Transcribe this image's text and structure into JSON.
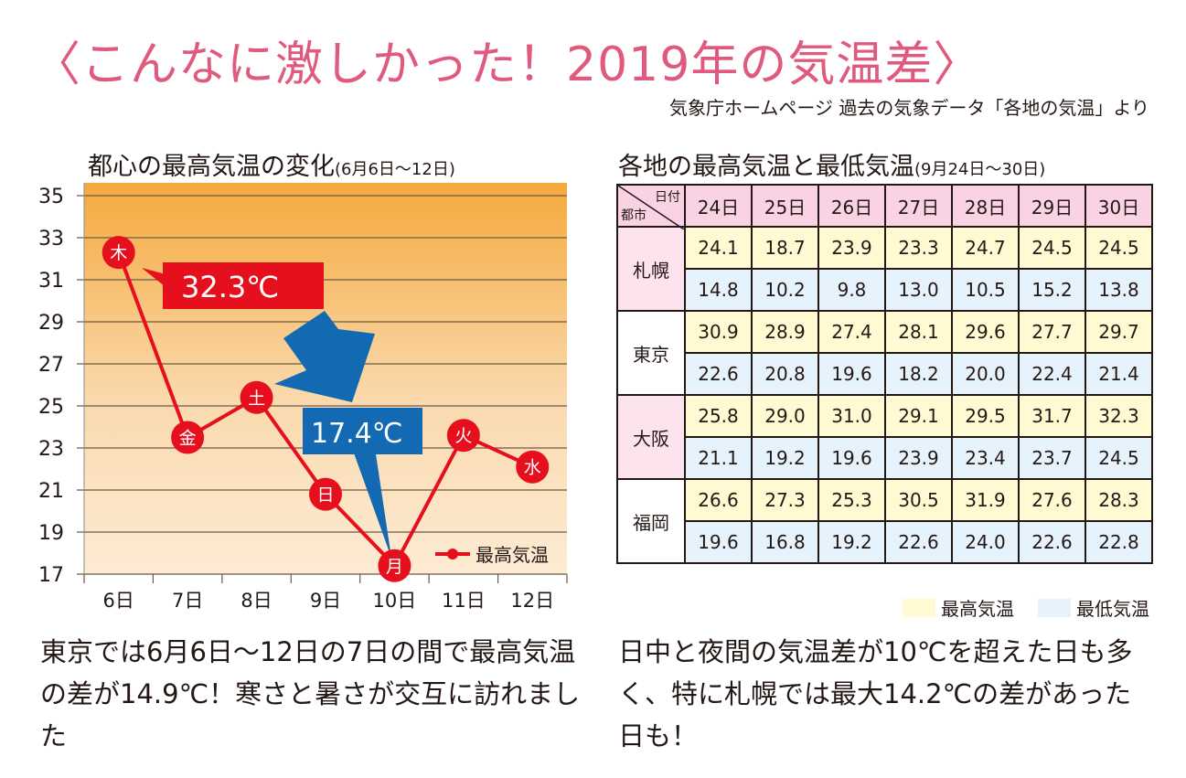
{
  "title": "〈こんなに激しかった！2019年の気温差〉",
  "source": "気象庁ホームページ 過去の気象データ「各地の気温」より",
  "left": {
    "subtitle": "都心の最高気温の変化",
    "subtitle_range": "(6月6日〜12日)",
    "paragraph": "東京では6月6日〜12日の7日の間で最高気温の差が14.9℃！寒さと暑さが交互に訪れました"
  },
  "chart_data": {
    "type": "line",
    "title": "都心の最高気温の変化(6月6日〜12日)",
    "xlabel": "",
    "ylabel": "",
    "categories": [
      "6日",
      "7日",
      "8日",
      "9日",
      "10日",
      "11日",
      "12日"
    ],
    "weekdays": [
      "木",
      "金",
      "土",
      "日",
      "月",
      "火",
      "水"
    ],
    "series": [
      {
        "name": "最高気温",
        "values": [
          32.3,
          23.5,
          25.4,
          20.8,
          17.4,
          23.6,
          22.1
        ],
        "color": "#e60f1e"
      }
    ],
    "yticks": [
      "35",
      "33",
      "31",
      "29",
      "27",
      "25",
      "23",
      "21",
      "19",
      "17"
    ],
    "ylim": [
      17,
      35
    ],
    "grid": true,
    "legend": "bottom-right",
    "annotations": [
      {
        "text": "32.3℃",
        "target_index": 0,
        "color": "#e60f1e"
      },
      {
        "text": "17.4℃",
        "target_index": 4,
        "color": "#1369b2"
      }
    ]
  },
  "right": {
    "subtitle": "各地の最高気温と最低気温",
    "subtitle_range": "(9月24日〜30日)",
    "corner_date": "日付",
    "corner_city": "都市",
    "dates": [
      "24日",
      "25日",
      "26日",
      "27日",
      "28日",
      "29日",
      "30日"
    ],
    "cities": [
      {
        "name": "札幌",
        "high": [
          "24.1",
          "18.7",
          "23.9",
          "23.3",
          "24.7",
          "24.5",
          "24.5"
        ],
        "low": [
          "14.8",
          "10.2",
          "9.8",
          "13.0",
          "10.5",
          "15.2",
          "13.8"
        ]
      },
      {
        "name": "東京",
        "high": [
          "30.9",
          "28.9",
          "27.4",
          "28.1",
          "29.6",
          "27.7",
          "29.7"
        ],
        "low": [
          "22.6",
          "20.8",
          "19.6",
          "18.2",
          "20.0",
          "22.4",
          "21.4"
        ]
      },
      {
        "name": "大阪",
        "high": [
          "25.8",
          "29.0",
          "31.0",
          "29.1",
          "29.5",
          "31.7",
          "32.3"
        ],
        "low": [
          "21.1",
          "19.2",
          "19.6",
          "23.9",
          "23.4",
          "23.7",
          "24.5"
        ]
      },
      {
        "name": "福岡",
        "high": [
          "26.6",
          "27.3",
          "25.3",
          "30.5",
          "31.9",
          "27.6",
          "28.3"
        ],
        "low": [
          "19.6",
          "16.8",
          "19.2",
          "22.6",
          "24.0",
          "22.6",
          "22.8"
        ]
      }
    ],
    "legend_high": "最高気温",
    "legend_low": "最低気温",
    "paragraph": "日中と夜間の気温差が10℃を超えた日も多く、特に札幌では最大14.2℃の差があった日も！"
  }
}
